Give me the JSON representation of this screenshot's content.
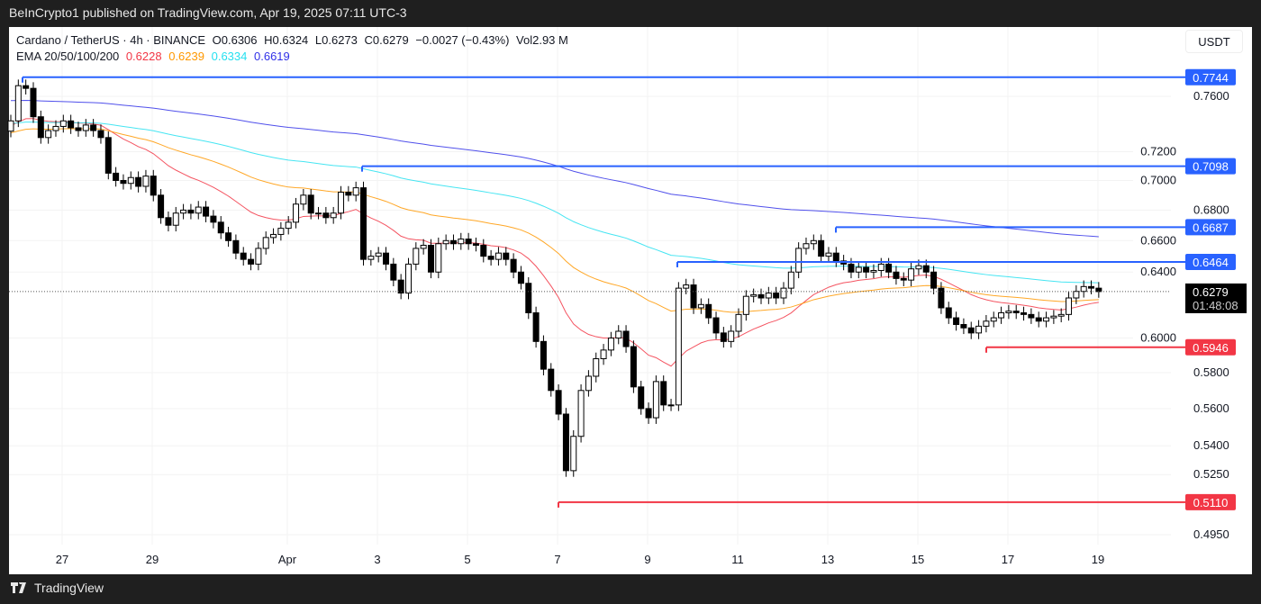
{
  "publish_line": "BeInCrypto1 published on TradingView.com, Apr 19, 2025 07:11 UTC-3",
  "legend": {
    "symbol": "Cardano / TetherUS · 4h · BINANCE",
    "open": "O0.6306",
    "high": "H0.6324",
    "low": "L0.6273",
    "close": "C0.6279",
    "change": "−0.0027 (−0.43%)",
    "volume": "Vol2.93 M",
    "ema_label": "EMA 20/50/100/200",
    "ema_values": [
      "0.6228",
      "0.6239",
      "0.6334",
      "0.6619"
    ]
  },
  "currency": "USDT",
  "footer_brand": "TradingView",
  "colors": {
    "ema20": "#f23645",
    "ema50": "#ff9800",
    "ema100": "#26e0f0",
    "ema200": "#3131e8",
    "level_blue": "#2962ff",
    "level_red": "#f23645",
    "up": "#ffffff",
    "down": "#000000"
  },
  "chart_data": {
    "type": "candlestick",
    "timeframe": "4h",
    "scale": "log",
    "ylim": [
      0.48,
      0.8
    ],
    "y_ticks": [
      "0.7600",
      "0.7200",
      "0.7000",
      "0.6800",
      "0.6600",
      "0.6400",
      "0.6000",
      "0.5800",
      "0.5600",
      "0.5400",
      "0.5250",
      "0.4950"
    ],
    "x_ticks": [
      "27",
      "29",
      "Apr",
      "3",
      "5",
      "7",
      "9",
      "11",
      "13",
      "15",
      "17",
      "19"
    ],
    "closes": [
      0.742,
      0.768,
      0.766,
      0.745,
      0.73,
      0.735,
      0.738,
      0.742,
      0.737,
      0.735,
      0.739,
      0.735,
      0.73,
      0.705,
      0.7,
      0.698,
      0.702,
      0.696,
      0.703,
      0.69,
      0.675,
      0.67,
      0.678,
      0.68,
      0.678,
      0.682,
      0.676,
      0.672,
      0.665,
      0.66,
      0.652,
      0.648,
      0.645,
      0.655,
      0.662,
      0.664,
      0.668,
      0.672,
      0.684,
      0.69,
      0.678,
      0.678,
      0.675,
      0.678,
      0.692,
      0.69,
      0.695,
      0.648,
      0.65,
      0.652,
      0.645,
      0.635,
      0.627,
      0.645,
      0.655,
      0.657,
      0.64,
      0.658,
      0.66,
      0.658,
      0.661,
      0.658,
      0.657,
      0.65,
      0.648,
      0.652,
      0.648,
      0.64,
      0.633,
      0.615,
      0.598,
      0.582,
      0.57,
      0.557,
      0.527,
      0.545,
      0.57,
      0.578,
      0.588,
      0.593,
      0.6,
      0.604,
      0.595,
      0.572,
      0.56,
      0.555,
      0.575,
      0.562,
      0.562,
      0.63,
      0.632,
      0.618,
      0.62,
      0.612,
      0.603,
      0.598,
      0.604,
      0.614,
      0.625,
      0.626,
      0.624,
      0.627,
      0.624,
      0.63,
      0.64,
      0.655,
      0.658,
      0.66,
      0.65,
      0.652,
      0.647,
      0.645,
      0.64,
      0.643,
      0.64,
      0.641,
      0.645,
      0.64,
      0.636,
      0.635,
      0.642,
      0.644,
      0.64,
      0.63,
      0.618,
      0.612,
      0.608,
      0.606,
      0.603,
      0.607,
      0.61,
      0.612,
      0.615,
      0.616,
      0.615,
      0.614,
      0.612,
      0.61,
      0.612,
      0.613,
      0.614,
      0.624,
      0.628,
      0.631,
      0.63,
      0.6279
    ],
    "levels": [
      {
        "price": "0.7744",
        "color": "blue",
        "from_date": "Mar 26"
      },
      {
        "price": "0.7098",
        "color": "blue",
        "from_date": "Apr 2"
      },
      {
        "price": "0.6687",
        "color": "blue",
        "from_date": "Apr 13"
      },
      {
        "price": "0.6464",
        "color": "blue",
        "from_date": "Apr 9"
      },
      {
        "price": "0.5946",
        "color": "red",
        "from_date": "Apr 16"
      },
      {
        "price": "0.5110",
        "color": "red",
        "from_date": "Apr 7"
      }
    ],
    "last_price": "0.6279",
    "countdown": "01:48:08"
  }
}
